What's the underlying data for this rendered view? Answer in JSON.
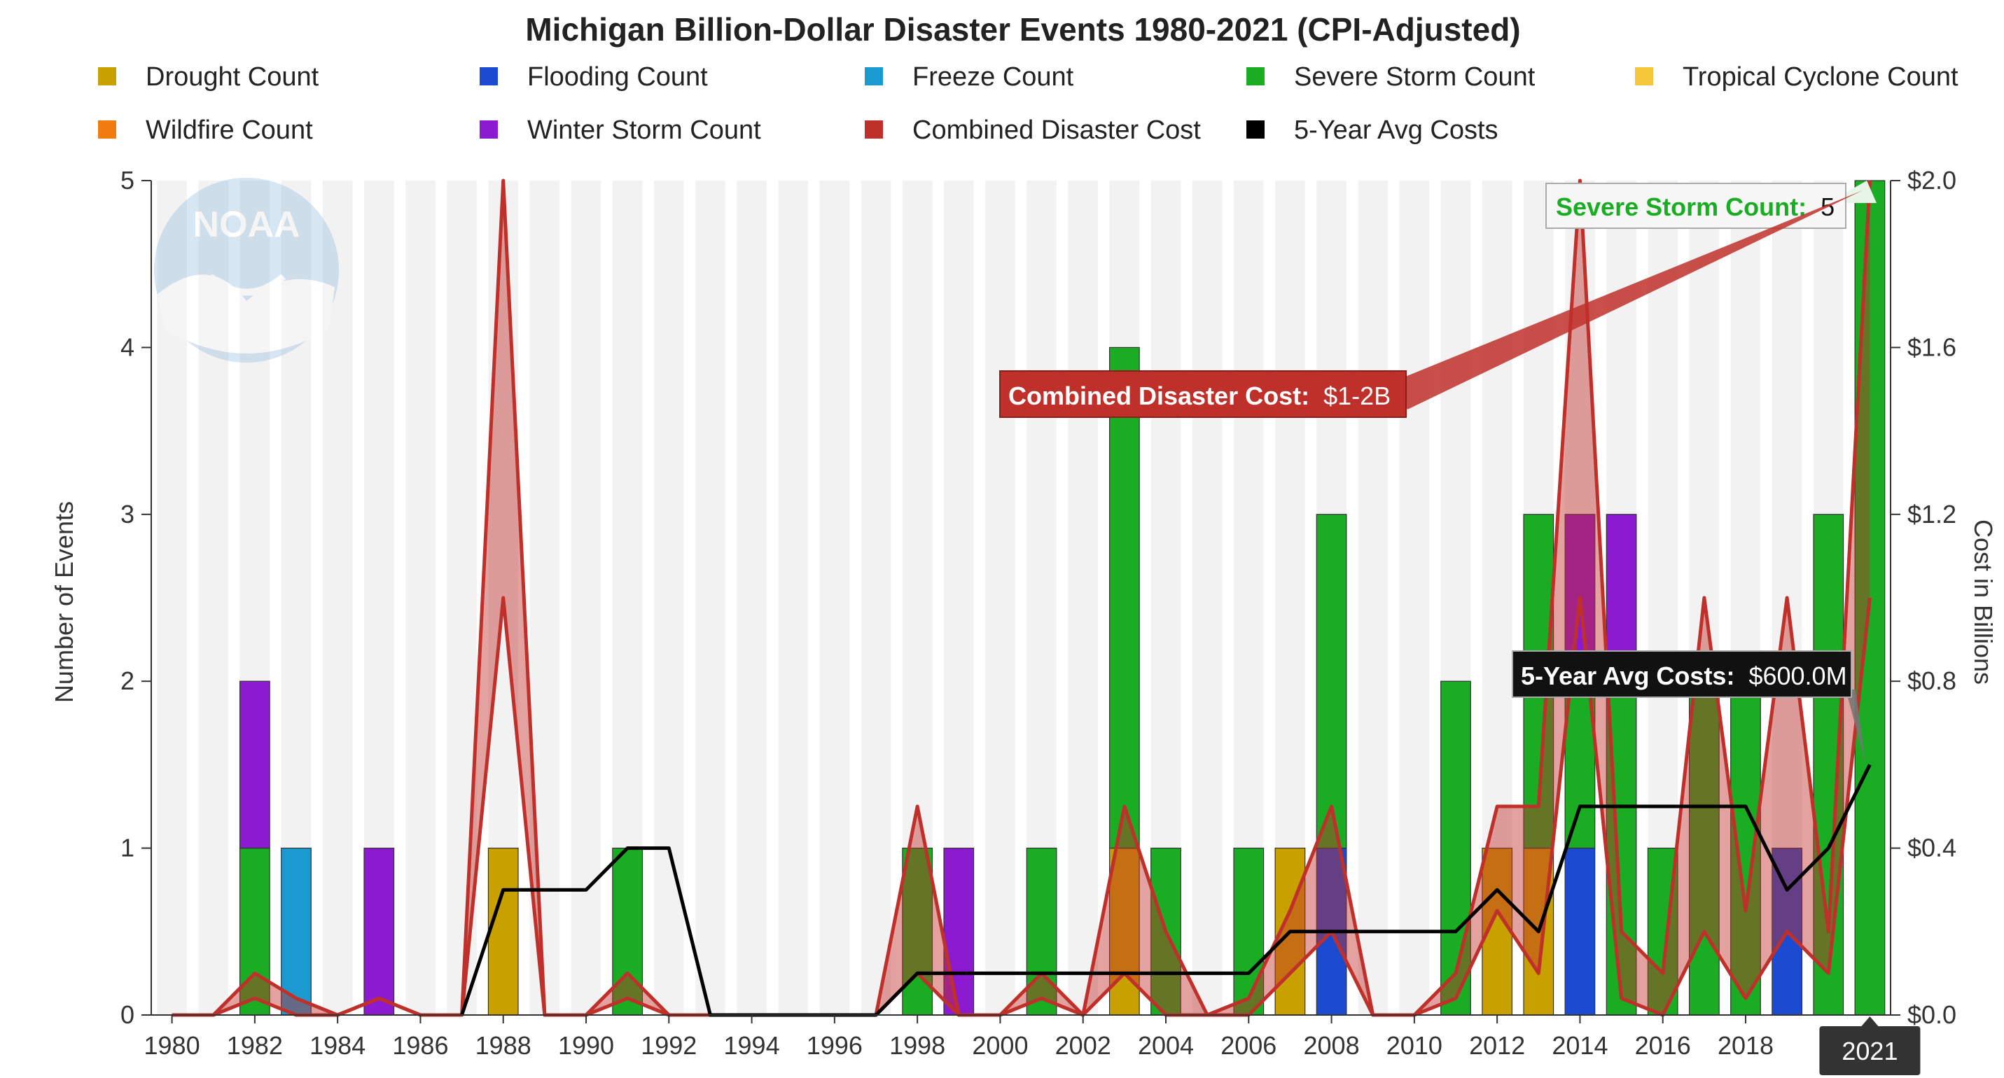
{
  "chart_data": {
    "type": "bar",
    "title": "Michigan Billion-Dollar Disaster Events 1980-2021 (CPI-Adjusted)",
    "ylabel": "Number of Events",
    "y2label": "Cost in Billions",
    "ylim": [
      0,
      5
    ],
    "y2lim": [
      0,
      2.0
    ],
    "y_ticks": [
      "0",
      "1",
      "2",
      "3",
      "4",
      "5"
    ],
    "y2_ticks": [
      "$0.0",
      "$0.4",
      "$0.8",
      "$1.2",
      "$1.6",
      "$2.0"
    ],
    "x_tick_labels": [
      "1980",
      "1982",
      "1984",
      "1986",
      "1988",
      "1990",
      "1992",
      "1994",
      "1996",
      "1998",
      "2000",
      "2002",
      "2004",
      "2006",
      "2008",
      "2010",
      "2012",
      "2014",
      "2016",
      "2018"
    ],
    "x_highlight_label": "2021",
    "years": [
      1980,
      1981,
      1982,
      1983,
      1984,
      1985,
      1986,
      1987,
      1988,
      1989,
      1990,
      1991,
      1992,
      1993,
      1994,
      1995,
      1996,
      1997,
      1998,
      1999,
      2000,
      2001,
      2002,
      2003,
      2004,
      2005,
      2006,
      2007,
      2008,
      2009,
      2010,
      2011,
      2012,
      2013,
      2014,
      2015,
      2016,
      2017,
      2018,
      2019,
      2020,
      2021
    ],
    "series": [
      {
        "name": "Drought Count",
        "color": "#c8a000",
        "values": [
          0,
          0,
          0,
          0,
          0,
          0,
          0,
          0,
          1,
          0,
          0,
          0,
          0,
          0,
          0,
          0,
          0,
          0,
          0,
          0,
          0,
          0,
          0,
          1,
          0,
          0,
          0,
          1,
          0,
          0,
          0,
          0,
          1,
          1,
          0,
          0,
          0,
          0,
          0,
          0,
          0,
          0
        ]
      },
      {
        "name": "Flooding Count",
        "color": "#1a4bd1",
        "values": [
          0,
          0,
          0,
          0,
          0,
          0,
          0,
          0,
          0,
          0,
          0,
          0,
          0,
          0,
          0,
          0,
          0,
          0,
          0,
          0,
          0,
          0,
          0,
          0,
          0,
          0,
          0,
          0,
          1,
          0,
          0,
          0,
          0,
          0,
          1,
          0,
          0,
          0,
          0,
          1,
          0,
          0
        ]
      },
      {
        "name": "Freeze Count",
        "color": "#1a9ad1",
        "values": [
          0,
          0,
          0,
          1,
          0,
          0,
          0,
          0,
          0,
          0,
          0,
          0,
          0,
          0,
          0,
          0,
          0,
          0,
          0,
          0,
          0,
          0,
          0,
          0,
          0,
          0,
          0,
          0,
          0,
          0,
          0,
          0,
          0,
          0,
          0,
          0,
          0,
          0,
          0,
          0,
          0,
          0
        ]
      },
      {
        "name": "Severe Storm Count",
        "color": "#1aad24",
        "values": [
          0,
          0,
          1,
          0,
          0,
          0,
          0,
          0,
          0,
          0,
          0,
          1,
          0,
          0,
          0,
          0,
          0,
          0,
          1,
          0,
          0,
          1,
          0,
          3,
          1,
          0,
          1,
          0,
          2,
          0,
          0,
          2,
          0,
          2,
          1,
          2,
          1,
          2,
          2,
          0,
          3,
          5
        ]
      },
      {
        "name": "Tropical Cyclone Count",
        "color": "#f5c83c",
        "values": [
          0,
          0,
          0,
          0,
          0,
          0,
          0,
          0,
          0,
          0,
          0,
          0,
          0,
          0,
          0,
          0,
          0,
          0,
          0,
          0,
          0,
          0,
          0,
          0,
          0,
          0,
          0,
          0,
          0,
          0,
          0,
          0,
          0,
          0,
          0,
          0,
          0,
          0,
          0,
          0,
          0,
          0
        ]
      },
      {
        "name": "Wildfire Count",
        "color": "#f07c0f",
        "values": [
          0,
          0,
          0,
          0,
          0,
          0,
          0,
          0,
          0,
          0,
          0,
          0,
          0,
          0,
          0,
          0,
          0,
          0,
          0,
          0,
          0,
          0,
          0,
          0,
          0,
          0,
          0,
          0,
          0,
          0,
          0,
          0,
          0,
          0,
          0,
          0,
          0,
          0,
          0,
          0,
          0,
          0
        ]
      },
      {
        "name": "Winter Storm Count",
        "color": "#8c1ad1",
        "values": [
          0,
          0,
          1,
          0,
          0,
          1,
          0,
          0,
          0,
          0,
          0,
          0,
          0,
          0,
          0,
          0,
          0,
          0,
          0,
          1,
          0,
          0,
          0,
          0,
          0,
          0,
          0,
          0,
          0,
          0,
          0,
          0,
          0,
          0,
          1,
          1,
          0,
          0,
          0,
          0,
          0,
          0
        ]
      }
    ],
    "cost_band": {
      "name": "Combined Disaster Cost",
      "color": "#c0302a",
      "low": [
        0,
        0,
        0.04,
        0,
        0,
        0.04,
        0,
        0,
        1.0,
        0,
        0,
        0.04,
        0,
        0,
        0,
        0,
        0,
        0,
        0.1,
        0,
        0,
        0.04,
        0,
        0.1,
        0,
        0,
        0,
        0.1,
        0.2,
        0,
        0,
        0.04,
        0.25,
        0.1,
        1.0,
        0.04,
        0,
        0.2,
        0.04,
        0.2,
        0.1,
        1.0
      ],
      "high": [
        0,
        0,
        0.1,
        0.04,
        0,
        0.04,
        0,
        0,
        2.0,
        0,
        0,
        0.1,
        0,
        0,
        0,
        0,
        0,
        0,
        0.5,
        0,
        0,
        0.1,
        0,
        0.5,
        0.2,
        0,
        0.04,
        0.25,
        0.5,
        0,
        0,
        0.1,
        0.5,
        0.5,
        2.0,
        0.2,
        0.1,
        1.0,
        0.25,
        1.0,
        0.2,
        2.0
      ]
    },
    "avg_line": {
      "name": "5-Year Avg Costs",
      "color": "#000000",
      "values": [
        null,
        null,
        null,
        null,
        null,
        null,
        null,
        0,
        0.3,
        0.3,
        0.3,
        0.4,
        0.4,
        0,
        0,
        0,
        0,
        0,
        0.1,
        0.1,
        0.1,
        0.1,
        0.1,
        0.1,
        0.1,
        0.1,
        0.1,
        0.2,
        0.2,
        0.2,
        0.2,
        0.2,
        0.3,
        0.2,
        0.5,
        0.5,
        0.5,
        0.5,
        0.5,
        0.3,
        0.4,
        0.6
      ]
    },
    "legend": [
      {
        "label": "Drought Count",
        "color": "#c8a000"
      },
      {
        "label": "Flooding Count",
        "color": "#1a4bd1"
      },
      {
        "label": "Freeze Count",
        "color": "#1a9ad1"
      },
      {
        "label": "Severe Storm Count",
        "color": "#1aad24"
      },
      {
        "label": "Tropical Cyclone Count",
        "color": "#f5c83c"
      },
      {
        "label": "Wildfire Count",
        "color": "#f07c0f"
      },
      {
        "label": "Winter Storm Count",
        "color": "#8c1ad1"
      },
      {
        "label": "Combined Disaster Cost",
        "color": "#c0302a"
      },
      {
        "label": "5-Year Avg Costs",
        "color": "#000000"
      }
    ],
    "tooltips": {
      "storm": {
        "label": "Severe Storm Count:",
        "value": "5"
      },
      "cost": {
        "label": "Combined Disaster Cost:",
        "value": "$1-2B"
      },
      "avg": {
        "label": "5-Year Avg Costs:",
        "value": "$600.0M"
      }
    },
    "logo_text": "NOAA"
  }
}
